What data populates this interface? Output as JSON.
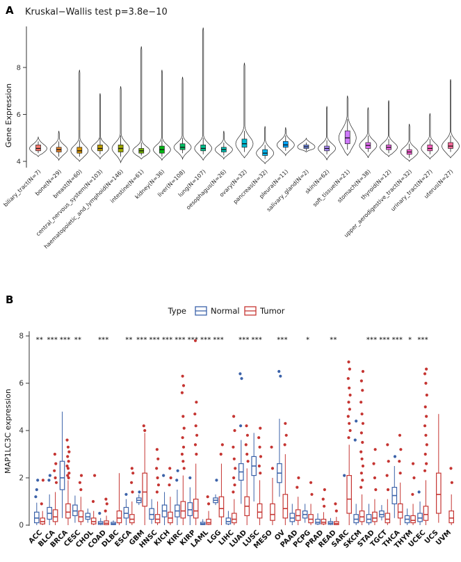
{
  "chart_data": [
    {
      "type": "violin",
      "panel_label": "A",
      "title": "Kruskal−Wallis test p=3.8e−10",
      "ylabel": "Gene Expression",
      "yticks": [
        4,
        6,
        8
      ],
      "ylim": [
        3.8,
        9.9
      ],
      "categories": [
        "biliary_tract(N=7)",
        "bone(N=29)",
        "breast(N=60)",
        "central_nervous_system(N=103)",
        "haematopoietic_and_lymphoid(N=146)",
        "intestine(N=61)",
        "kidney(N=36)",
        "liver(N=108)",
        "lung(N=107)",
        "oesophagus(N=26)",
        "ovary(N=32)",
        "pancreas(N=32)",
        "pleura(N=11)",
        "salivary_gland(N=2)",
        "skin(N=62)",
        "soft_tissue(N=21)",
        "stomach(N=38)",
        "thyroid(N=12)",
        "upper_aerodigestive_tract(N=32)",
        "urinary_tract(N=27)",
        "uterus(N=27)"
      ],
      "series": [
        {
          "label": "biliary_tract(N=7)",
          "color": "#F8766D",
          "vmin": 4.2,
          "vmax": 5.05,
          "mode": 4.55,
          "sigma": 0.18,
          "box": [
            4.35,
            4.45,
            4.55,
            4.7,
            4.85
          ]
        },
        {
          "label": "bone(N=29)",
          "color": "#E9842C",
          "vmin": 4.05,
          "vmax": 5.3,
          "mode": 4.5,
          "sigma": 0.2,
          "box": [
            4.2,
            4.4,
            4.5,
            4.6,
            4.85
          ]
        },
        {
          "label": "breast(N=60)",
          "color": "#D69100",
          "vmin": 4.0,
          "vmax": 7.9,
          "mode": 4.45,
          "sigma": 0.22,
          "box": [
            4.2,
            4.35,
            4.45,
            4.6,
            4.9
          ]
        },
        {
          "label": "central_nervous_system(N=103)",
          "color": "#BC9D00",
          "vmin": 4.1,
          "vmax": 6.9,
          "mode": 4.55,
          "sigma": 0.2,
          "box": [
            4.3,
            4.45,
            4.55,
            4.7,
            5.0
          ]
        },
        {
          "label": "haematopoietic_and_lymphoid(N=146)",
          "color": "#9CA700",
          "vmin": 3.95,
          "vmax": 7.2,
          "mode": 4.55,
          "sigma": 0.25,
          "box": [
            4.2,
            4.4,
            4.55,
            4.7,
            5.1
          ]
        },
        {
          "label": "intestine(N=61)",
          "color": "#6FB000",
          "vmin": 4.1,
          "vmax": 8.9,
          "mode": 4.45,
          "sigma": 0.18,
          "box": [
            4.25,
            4.35,
            4.45,
            4.55,
            4.8
          ]
        },
        {
          "label": "kidney(N=36)",
          "color": "#00B813",
          "vmin": 4.05,
          "vmax": 7.9,
          "mode": 4.5,
          "sigma": 0.2,
          "box": [
            4.2,
            4.35,
            4.5,
            4.65,
            4.9
          ]
        },
        {
          "label": "liver(N=108)",
          "color": "#00BD61",
          "vmin": 4.1,
          "vmax": 7.6,
          "mode": 4.6,
          "sigma": 0.2,
          "box": [
            4.35,
            4.5,
            4.6,
            4.75,
            5.0
          ]
        },
        {
          "label": "lung(N=107)",
          "color": "#00C08E",
          "vmin": 4.05,
          "vmax": 9.7,
          "mode": 4.55,
          "sigma": 0.22,
          "box": [
            4.3,
            4.45,
            4.55,
            4.7,
            5.0
          ]
        },
        {
          "label": "oesophagus(N=26)",
          "color": "#00C0B4",
          "vmin": 4.1,
          "vmax": 5.3,
          "mode": 4.5,
          "sigma": 0.18,
          "box": [
            4.25,
            4.4,
            4.5,
            4.6,
            4.8
          ]
        },
        {
          "label": "ovary(N=32)",
          "color": "#00BDD4",
          "vmin": 4.15,
          "vmax": 8.2,
          "mode": 4.75,
          "sigma": 0.3,
          "box": [
            4.4,
            4.6,
            4.75,
            4.95,
            5.3
          ]
        },
        {
          "label": "pancreas(N=32)",
          "color": "#00B5EC",
          "vmin": 3.9,
          "vmax": 5.5,
          "mode": 4.35,
          "sigma": 0.22,
          "box": [
            4.1,
            4.25,
            4.35,
            4.5,
            4.7
          ]
        },
        {
          "label": "pleura(N=11)",
          "color": "#00A7FF",
          "vmin": 4.25,
          "vmax": 5.45,
          "mode": 4.7,
          "sigma": 0.2,
          "box": [
            4.45,
            4.6,
            4.7,
            4.85,
            5.1
          ]
        },
        {
          "label": "salivary_gland(N=2)",
          "color": "#7997FF",
          "vmin": 4.4,
          "vmax": 5.0,
          "mode": 4.62,
          "sigma": 0.15,
          "box": [
            4.45,
            4.55,
            4.62,
            4.7,
            4.8
          ]
        },
        {
          "label": "skin(N=62)",
          "color": "#AC88FF",
          "vmin": 4.05,
          "vmax": 6.35,
          "mode": 4.55,
          "sigma": 0.2,
          "box": [
            4.3,
            4.45,
            4.55,
            4.65,
            4.9
          ]
        },
        {
          "label": "soft_tissue(N=21)",
          "color": "#CF78FF",
          "vmin": 4.25,
          "vmax": 6.8,
          "mode": 5.0,
          "sigma": 0.38,
          "box": [
            4.5,
            4.75,
            5.0,
            5.3,
            5.8
          ]
        },
        {
          "label": "stomach(N=38)",
          "color": "#E56DF5",
          "vmin": 4.15,
          "vmax": 6.3,
          "mode": 4.68,
          "sigma": 0.22,
          "box": [
            4.4,
            4.55,
            4.68,
            4.8,
            5.1
          ]
        },
        {
          "label": "thyroid(N=12)",
          "color": "#F166E8",
          "vmin": 4.2,
          "vmax": 6.6,
          "mode": 4.6,
          "sigma": 0.2,
          "box": [
            4.35,
            4.5,
            4.6,
            4.7,
            4.95
          ]
        },
        {
          "label": "upper_aerodigestive_tract(N=32)",
          "color": "#FB61D7",
          "vmin": 4.0,
          "vmax": 5.6,
          "mode": 4.4,
          "sigma": 0.2,
          "box": [
            4.15,
            4.3,
            4.4,
            4.5,
            4.75
          ]
        },
        {
          "label": "urinary_tract(N=27)",
          "color": "#FF62C1",
          "vmin": 4.1,
          "vmax": 6.05,
          "mode": 4.55,
          "sigma": 0.22,
          "box": [
            4.3,
            4.45,
            4.55,
            4.7,
            4.95
          ]
        },
        {
          "label": "uterus(N=27)",
          "color": "#FF6A9A",
          "vmin": 4.15,
          "vmax": 7.5,
          "mode": 4.65,
          "sigma": 0.25,
          "box": [
            4.4,
            4.55,
            4.65,
            4.8,
            5.1
          ]
        }
      ]
    },
    {
      "type": "grouped-box",
      "panel_label": "B",
      "ylabel": "MAP1LC3C expression",
      "yticks": [
        0,
        2,
        4,
        6,
        8
      ],
      "ylim": [
        0,
        8.2
      ],
      "legend": {
        "title": "Type",
        "items": [
          {
            "label": "Normal",
            "color": "#3B62A9"
          },
          {
            "label": "Tumor",
            "color": "#C53532"
          }
        ]
      },
      "categories": [
        "ACC",
        "BLCA",
        "BRCA",
        "CESC",
        "CHOL",
        "COAD",
        "DLBC",
        "ESCA",
        "GBM",
        "HNSC",
        "KICH",
        "KIRC",
        "KIRP",
        "LAML",
        "LGG",
        "LIHC",
        "LUAD",
        "LUSC",
        "MESO",
        "OV",
        "PAAD",
        "PCPG",
        "PRAD",
        "READ",
        "SARC",
        "SKCM",
        "STAD",
        "TGCT",
        "THCA",
        "THYM",
        "UCEC",
        "UCS",
        "UVM"
      ],
      "significance": [
        "**",
        "***",
        "***",
        "**",
        "",
        "***",
        "",
        "**",
        "***",
        "***",
        "***",
        "***",
        "***",
        "***",
        "***",
        "",
        "***",
        "***",
        "",
        "***",
        "",
        "*",
        "",
        "**",
        "",
        "",
        "***",
        "***",
        "***",
        "*",
        "***",
        "",
        ""
      ],
      "normal": [
        [
          0,
          0.1,
          0.3,
          0.55,
          0.95
        ],
        [
          0,
          0.25,
          0.5,
          0.75,
          1.3
        ],
        [
          0.3,
          1.5,
          2.0,
          2.7,
          4.8
        ],
        [
          0.1,
          0.4,
          0.6,
          0.85,
          1.25
        ],
        [
          0.1,
          0.25,
          0.35,
          0.5,
          0.7
        ],
        [
          0,
          0.03,
          0.08,
          0.15,
          0.3
        ],
        [
          0,
          0.02,
          0.06,
          0.12,
          0.2
        ],
        [
          0,
          0.3,
          0.5,
          0.75,
          1.1
        ],
        [
          0.85,
          0.95,
          1.05,
          1.15,
          1.3
        ],
        [
          0.05,
          0.25,
          0.45,
          0.7,
          1.1
        ],
        [
          0,
          0.35,
          0.6,
          0.85,
          1.4
        ],
        [
          0,
          0.35,
          0.6,
          0.85,
          1.5
        ],
        [
          0,
          0.4,
          0.65,
          0.95,
          1.6
        ],
        [
          0,
          0.02,
          0.06,
          0.12,
          0.25
        ],
        [
          0.85,
          0.95,
          1.05,
          1.15,
          1.3
        ],
        [
          0,
          0.05,
          0.15,
          0.3,
          0.6
        ],
        [
          0.9,
          1.9,
          2.25,
          2.6,
          3.6
        ],
        [
          1.0,
          2.1,
          2.5,
          2.9,
          3.9
        ],
        null,
        [
          1.2,
          1.8,
          2.2,
          2.6,
          4.5
        ],
        [
          0,
          0.15,
          0.3,
          0.5,
          0.9
        ],
        [
          0.1,
          0.3,
          0.45,
          0.6,
          0.9
        ],
        [
          0,
          0.05,
          0.12,
          0.25,
          0.5
        ],
        [
          0,
          0.03,
          0.08,
          0.15,
          0.3
        ],
        null,
        [
          0,
          0.1,
          0.25,
          0.45,
          0.9
        ],
        [
          0,
          0.1,
          0.25,
          0.45,
          0.9
        ],
        [
          0.2,
          0.35,
          0.45,
          0.6,
          0.85
        ],
        [
          0.3,
          0.9,
          1.25,
          1.6,
          2.5
        ],
        [
          0,
          0.1,
          0.25,
          0.4,
          0.7
        ],
        [
          0,
          0.15,
          0.3,
          0.5,
          1.0
        ],
        null,
        null
      ],
      "tumor": [
        [
          0,
          0.05,
          0.15,
          0.3,
          0.6
        ],
        [
          0,
          0.15,
          0.35,
          0.65,
          1.4
        ],
        [
          0,
          0.3,
          0.55,
          0.9,
          1.9
        ],
        [
          0,
          0.15,
          0.35,
          0.6,
          1.2
        ],
        [
          0,
          0.05,
          0.15,
          0.3,
          0.6
        ],
        [
          0,
          0.02,
          0.08,
          0.18,
          0.4
        ],
        [
          0,
          0.1,
          0.3,
          0.6,
          2.2
        ],
        [
          0,
          0.1,
          0.25,
          0.45,
          1.0
        ],
        [
          0,
          0.8,
          1.4,
          2.2,
          3.9
        ],
        [
          0,
          0.1,
          0.25,
          0.45,
          1.0
        ],
        [
          0,
          0.1,
          0.3,
          0.55,
          1.2
        ],
        [
          0,
          0.3,
          0.6,
          1.0,
          2.1
        ],
        [
          0,
          0.3,
          0.6,
          1.1,
          2.6
        ],
        [
          0,
          0.03,
          0.1,
          0.25,
          0.6
        ],
        [
          0,
          0.35,
          0.7,
          1.2,
          2.6
        ],
        [
          0,
          0.1,
          0.25,
          0.5,
          1.1
        ],
        [
          0,
          0.4,
          0.8,
          1.2,
          2.4
        ],
        [
          0,
          0.3,
          0.55,
          0.9,
          1.9
        ],
        [
          0,
          0.2,
          0.45,
          0.9,
          2.0
        ],
        [
          0,
          0.3,
          0.7,
          1.3,
          3.0
        ],
        [
          0,
          0.2,
          0.4,
          0.65,
          1.2
        ],
        [
          0,
          0.1,
          0.25,
          0.45,
          0.9
        ],
        [
          0,
          0.05,
          0.12,
          0.25,
          0.55
        ],
        [
          0,
          0.02,
          0.07,
          0.15,
          0.35
        ],
        [
          0,
          0.5,
          1.1,
          2.1,
          3.4
        ],
        [
          0,
          0.15,
          0.35,
          0.6,
          1.3
        ],
        [
          0,
          0.15,
          0.3,
          0.55,
          1.1
        ],
        [
          0,
          0.1,
          0.25,
          0.5,
          1.1
        ],
        [
          0,
          0.3,
          0.55,
          0.9,
          1.8
        ],
        [
          0,
          0.1,
          0.2,
          0.4,
          0.9
        ],
        [
          0,
          0.2,
          0.45,
          0.8,
          1.9
        ],
        [
          0.1,
          0.5,
          1.3,
          2.2,
          4.7
        ],
        [
          0,
          0.1,
          0.3,
          0.6,
          1.3
        ]
      ],
      "normal_outliers": [
        [
          1.2,
          1.5,
          1.9
        ],
        [
          1.9,
          2.1
        ],
        [],
        [],
        [],
        [
          0.5
        ],
        [],
        [
          1.3
        ],
        [
          1.4
        ],
        [],
        [
          2.1
        ],
        [
          1.9,
          2.3
        ],
        [
          2.0
        ],
        [],
        [
          1.9
        ],
        [],
        [
          4.2,
          6.2,
          6.4
        ],
        [],
        [],
        [
          6.3,
          6.5
        ],
        [],
        [],
        [],
        [],
        [
          2.1
        ],
        [
          3.6,
          4.4
        ],
        [],
        [],
        [
          2.9
        ],
        [],
        [
          1.4
        ],
        [],
        []
      ],
      "tumor_outliers": [
        [
          0.9,
          1.9
        ],
        [
          1.8,
          2.0,
          2.3,
          2.6,
          3.0
        ],
        [
          2.0,
          2.1,
          2.2,
          2.4,
          2.5,
          2.7,
          2.9,
          3.1,
          3.3,
          3.6
        ],
        [
          1.5,
          1.8,
          2.1
        ],
        [
          1.0,
          2.1
        ],
        [
          0.6,
          0.9,
          1.1
        ],
        [],
        [
          1.4,
          1.8,
          2.2,
          2.4
        ],
        [
          4.0,
          4.2
        ],
        [
          1.4,
          1.7,
          2.0,
          2.4,
          2.8,
          3.2
        ],
        [
          1.7,
          2.0,
          2.4
        ],
        [
          2.4,
          2.7,
          3.0,
          3.3,
          3.7,
          4.1,
          4.6,
          5.6,
          5.9,
          6.3
        ],
        [
          3.0,
          3.4,
          3.8,
          4.2,
          4.7,
          5.2,
          7.8
        ],
        [
          0.9,
          1.2
        ],
        [
          3.0,
          3.4
        ],
        [
          1.4,
          1.7,
          2.0,
          2.4,
          2.8,
          3.3,
          4.0,
          4.6
        ],
        [
          2.7,
          3.0,
          3.4,
          3.8,
          4.2
        ],
        [
          2.2,
          2.5,
          2.9,
          3.3,
          3.7,
          4.1
        ],
        [
          2.4,
          3.3
        ],
        [
          3.4,
          3.8,
          4.3
        ],
        [
          1.6,
          2.0
        ],
        [
          1.3,
          1.8
        ],
        [
          0.8,
          1.1,
          1.5
        ],
        [
          0.6,
          0.9
        ],
        [
          3.7,
          4.0,
          4.3,
          4.6,
          4.9,
          5.2,
          5.5,
          5.8,
          6.2,
          6.6,
          6.9
        ],
        [
          1.6,
          1.9,
          2.2,
          2.5,
          2.8,
          3.1,
          3.5,
          3.9,
          4.3,
          4.7,
          5.2,
          5.7,
          6.1,
          6.5
        ],
        [
          1.5,
          2.0,
          2.6,
          3.2
        ],
        [
          1.5,
          2.1,
          2.7,
          3.4
        ],
        [
          2.2,
          2.7,
          3.2,
          3.8
        ],
        [
          1.3,
          2.0,
          2.6
        ],
        [
          2.3,
          2.6,
          3.0,
          3.4,
          3.8,
          4.2,
          4.6,
          5.0,
          5.5,
          6.0,
          6.4,
          6.6
        ],
        [],
        [
          1.8,
          2.4
        ]
      ]
    }
  ]
}
